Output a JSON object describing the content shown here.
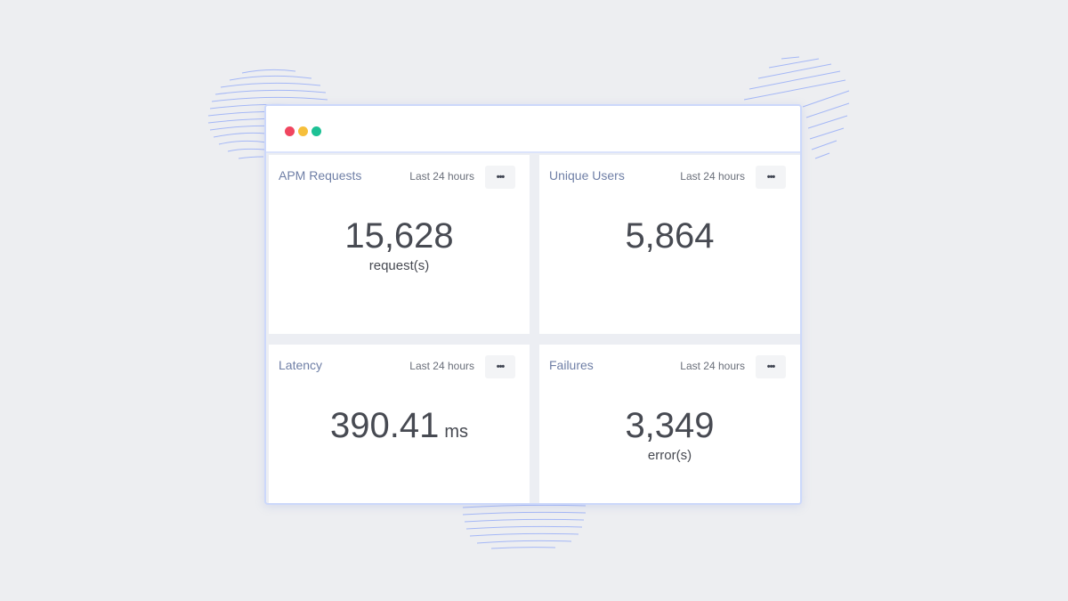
{
  "window": {
    "controls": [
      {
        "name": "close",
        "color": "#f0455f"
      },
      {
        "name": "minimize",
        "color": "#f6bf3b"
      },
      {
        "name": "maximize",
        "color": "#1dc195"
      }
    ]
  },
  "colors": {
    "background": "#edeef1",
    "accent": "#ccd8fb",
    "scribble": "#98aef7",
    "title_text": "#6f7fa6",
    "value_text": "#474a52"
  },
  "cards": [
    {
      "title": "APM Requests",
      "range": "Last 24 hours",
      "menu_icon": "more-horizontal-icon",
      "menu_glyph": "•••",
      "value": "15,628",
      "unit": "request(s)"
    },
    {
      "title": "Unique Users",
      "range": "Last 24 hours",
      "menu_icon": "more-horizontal-icon",
      "menu_glyph": "•••",
      "value": "5,864"
    },
    {
      "title": "Latency",
      "range": "Last 24 hours",
      "menu_icon": "more-horizontal-icon",
      "menu_glyph": "•••",
      "value": "390.41",
      "unit_inline": "ms"
    },
    {
      "title": "Failures",
      "range": "Last 24 hours",
      "menu_icon": "more-horizontal-icon",
      "menu_glyph": "•••",
      "value": "3,349",
      "unit": "error(s)"
    }
  ]
}
